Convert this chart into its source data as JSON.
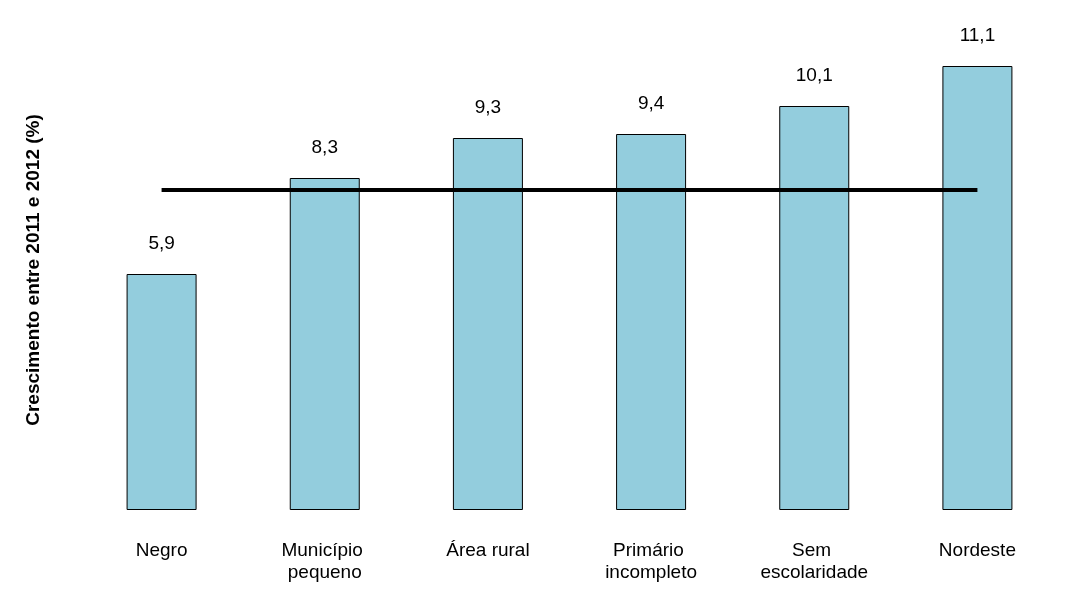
{
  "chart_data": {
    "type": "bar",
    "ylabel": "Crescimento entre 2011 e 2012 (%)",
    "categories": [
      "Negro",
      "Município pequeno",
      "Área rural",
      "Primário incompleto",
      "Sem escolaridade",
      "Nordeste"
    ],
    "values": [
      5.9,
      8.3,
      9.3,
      9.4,
      10.1,
      11.1
    ],
    "value_labels": [
      "5,9",
      "8,3",
      "9,3",
      "9,4",
      "10,1",
      "11,1"
    ],
    "color": "#93cddd",
    "ref_lines": [
      {
        "axis": "y",
        "value": 8.0,
        "color": "#000000",
        "line_style": "solid"
      }
    ]
  }
}
